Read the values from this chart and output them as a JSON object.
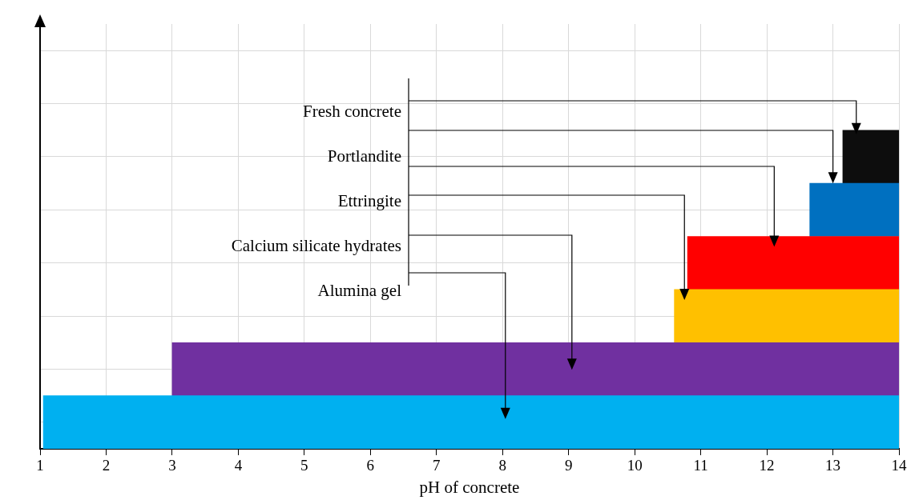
{
  "chart_data": {
    "type": "bar",
    "orientation": "horizontal",
    "xlabel": "pH of concrete",
    "categories": [
      null,
      null,
      null,
      null,
      null,
      null,
      null,
      null
    ],
    "base": [
      null,
      null,
      13.15,
      12.65,
      10.8,
      10.6,
      3.0,
      1.05
    ],
    "values": [
      null,
      null,
      0.85,
      1.35,
      3.2,
      3.4,
      11.0,
      12.95
    ],
    "colors": [
      "#000000",
      "#000000",
      "#0d0d0d",
      "#0070c0",
      "#ff0000",
      "#ffc000",
      "#7030a0",
      "#00b0f0"
    ],
    "xlim": [
      1,
      14
    ],
    "xticks": [
      1,
      2,
      3,
      4,
      5,
      6,
      7,
      8,
      9,
      10,
      11,
      12,
      13,
      14
    ],
    "tick_labels": "x",
    "grid": true,
    "annotations": [
      "Fresh concrete",
      "Portlandite",
      "Ettringite",
      "Calcium silicate hydrates",
      "Alumina gel"
    ]
  }
}
